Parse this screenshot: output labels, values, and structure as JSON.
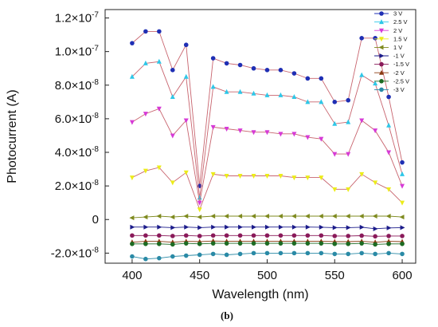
{
  "chart_data": {
    "type": "line",
    "xlabel": "Wavelength (nm)",
    "ylabel": "Photocurrent (A)",
    "caption": "(b)",
    "xlim": [
      380,
      610
    ],
    "ylim": [
      -2.6e-08,
      1.25e-07
    ],
    "x_ticks": [
      400,
      450,
      500,
      550,
      600
    ],
    "y_ticks": [
      {
        "value": -2e-08,
        "label": "-2.0×10-8"
      },
      {
        "value": 0,
        "label": "0"
      },
      {
        "value": 2e-08,
        "label": "2.0×10-8"
      },
      {
        "value": 4e-08,
        "label": "4.0×10-8"
      },
      {
        "value": 6e-08,
        "label": "6.0×10-8"
      },
      {
        "value": 8e-08,
        "label": "8.0×10-8"
      },
      {
        "value": 1e-07,
        "label": "1.0×10-7"
      },
      {
        "value": 1.2e-07,
        "label": "1.2×10-7"
      }
    ],
    "grid": false,
    "legend_position": "top-right",
    "x": [
      400,
      410,
      420,
      430,
      440,
      450,
      460,
      470,
      480,
      490,
      500,
      510,
      520,
      530,
      540,
      550,
      560,
      570,
      580,
      590,
      600
    ],
    "series": [
      {
        "name": "3 V",
        "color": "#1f2fb4",
        "marker": "circle",
        "values": [
          1.05e-07,
          1.12e-07,
          1.12e-07,
          8.9e-08,
          1.04e-07,
          2e-08,
          9.6e-08,
          9.3e-08,
          9.2e-08,
          9e-08,
          8.9e-08,
          8.9e-08,
          8.7e-08,
          8.4e-08,
          8.4e-08,
          7e-08,
          7.1e-08,
          1.08e-07,
          1.08e-07,
          7.3e-08,
          3.4e-08
        ]
      },
      {
        "name": "2.5 V",
        "color": "#2ec7e8",
        "marker": "triangle-up",
        "values": [
          8.5e-08,
          9.3e-08,
          9.4e-08,
          7.3e-08,
          8.5e-08,
          1.3e-08,
          7.9e-08,
          7.6e-08,
          7.6e-08,
          7.5e-08,
          7.4e-08,
          7.4e-08,
          7.3e-08,
          7e-08,
          7e-08,
          5.7e-08,
          5.8e-08,
          8.6e-08,
          8.1e-08,
          5.6e-08,
          2.7e-08
        ]
      },
      {
        "name": "2 V",
        "color": "#d63ad6",
        "marker": "triangle-down",
        "values": [
          5.8e-08,
          6.3e-08,
          6.6e-08,
          5e-08,
          5.9e-08,
          1e-08,
          5.5e-08,
          5.4e-08,
          5.3e-08,
          5.2e-08,
          5.2e-08,
          5.1e-08,
          5.1e-08,
          4.9e-08,
          4.8e-08,
          3.9e-08,
          3.9e-08,
          5.9e-08,
          5.3e-08,
          4e-08,
          2e-08
        ]
      },
      {
        "name": "1.5 V",
        "color": "#ecec1a",
        "marker": "triangle-down",
        "values": [
          2.5e-08,
          2.9e-08,
          3.1e-08,
          2.2e-08,
          2.8e-08,
          6e-09,
          2.7e-08,
          2.6e-08,
          2.6e-08,
          2.6e-08,
          2.6e-08,
          2.6e-08,
          2.5e-08,
          2.5e-08,
          2.5e-08,
          1.8e-08,
          1.8e-08,
          2.7e-08,
          2.2e-08,
          1.8e-08,
          1e-08
        ]
      },
      {
        "name": "1 V",
        "color": "#7e8a1e",
        "marker": "triangle-left",
        "values": [
          1e-09,
          1.5e-09,
          2e-09,
          1.5e-09,
          2e-09,
          1.5e-09,
          2e-09,
          2e-09,
          2e-09,
          2e-09,
          2e-09,
          2e-09,
          2e-09,
          2e-09,
          2e-09,
          2e-09,
          2e-09,
          2e-09,
          2e-09,
          2e-09,
          1.5e-09
        ]
      },
      {
        "name": "-1 V",
        "color": "#1b1b8a",
        "marker": "triangle-right",
        "values": [
          -4.5e-09,
          -4.5e-09,
          -4.5e-09,
          -4.8e-09,
          -4.5e-09,
          -4.8e-09,
          -4.5e-09,
          -4.5e-09,
          -4.5e-09,
          -4.5e-09,
          -4.5e-09,
          -4.5e-09,
          -4.5e-09,
          -4.5e-09,
          -4.6e-09,
          -4.8e-09,
          -4.8e-09,
          -4.6e-09,
          -5.5e-09,
          -5e-09,
          -4.8e-09
        ]
      },
      {
        "name": "-1.5 V",
        "color": "#8a1a5a",
        "marker": "circle",
        "values": [
          -9.5e-09,
          -9.5e-09,
          -9.5e-09,
          -9.8e-09,
          -9.5e-09,
          -9.8e-09,
          -9.5e-09,
          -9.5e-09,
          -9.5e-09,
          -9.5e-09,
          -9.5e-09,
          -9.5e-09,
          -9.5e-09,
          -9.5e-09,
          -9.5e-09,
          -9.8e-09,
          -9.8e-09,
          -9.6e-09,
          -1e-08,
          -9.8e-09,
          -9.8e-09
        ]
      },
      {
        "name": "-2 V",
        "color": "#8a3b12",
        "marker": "triangle-up",
        "values": [
          -1.35e-08,
          -1.3e-08,
          -1.3e-08,
          -1.35e-08,
          -1.3e-08,
          -1.32e-08,
          -1.28e-08,
          -1.3e-08,
          -1.3e-08,
          -1.3e-08,
          -1.3e-08,
          -1.3e-08,
          -1.3e-08,
          -1.3e-08,
          -1.3e-08,
          -1.32e-08,
          -1.32e-08,
          -1.3e-08,
          -1.35e-08,
          -1.3e-08,
          -1.32e-08
        ]
      },
      {
        "name": "-2.5 V",
        "color": "#1c6b22",
        "marker": "circle",
        "values": [
          -1.45e-08,
          -1.45e-08,
          -1.45e-08,
          -1.48e-08,
          -1.42e-08,
          -1.45e-08,
          -1.42e-08,
          -1.42e-08,
          -1.42e-08,
          -1.42e-08,
          -1.42e-08,
          -1.42e-08,
          -1.42e-08,
          -1.42e-08,
          -1.42e-08,
          -1.45e-08,
          -1.45e-08,
          -1.42e-08,
          -1.48e-08,
          -1.45e-08,
          -1.45e-08
        ]
      },
      {
        "name": "-3 V",
        "color": "#2a8aa6",
        "marker": "circle",
        "values": [
          -2.2e-08,
          -2.35e-08,
          -2.3e-08,
          -2.2e-08,
          -2.15e-08,
          -2.1e-08,
          -2.05e-08,
          -2.1e-08,
          -2.05e-08,
          -2e-08,
          -2e-08,
          -2e-08,
          -2e-08,
          -2e-08,
          -2e-08,
          -2.05e-08,
          -2.05e-08,
          -2e-08,
          -2.05e-08,
          -2e-08,
          -2.05e-08
        ]
      }
    ]
  }
}
